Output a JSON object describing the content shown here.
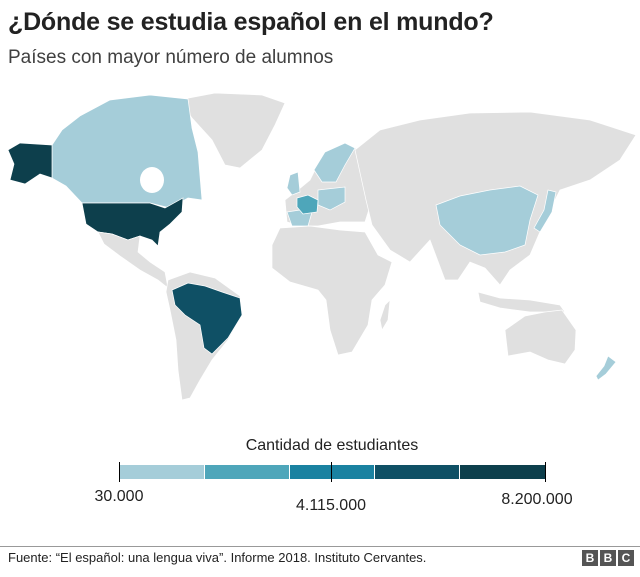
{
  "header": {
    "title": "¿Dónde se estudia español en el mundo?",
    "subtitle": "Países con mayor número de alumnos"
  },
  "legend": {
    "title": "Cantidad de estudiantes",
    "min_label": "30.000",
    "mid_label": "4.115.000",
    "max_label": "8.200.000",
    "bins": [
      "#a5cdd9",
      "#4ea6ba",
      "#1a82a1",
      "#0f5065",
      "#0d3f4c"
    ]
  },
  "map": {
    "no_data_color": "#e0e0e0",
    "highlighted": [
      {
        "country": "Estados Unidos",
        "bin": 4
      },
      {
        "country": "Brasil",
        "bin": 3
      },
      {
        "country": "Francia",
        "bin": 1
      },
      {
        "country": "Canadá",
        "bin": 0
      },
      {
        "country": "China",
        "bin": 0
      },
      {
        "country": "Europa (varios)",
        "bin": 0
      },
      {
        "country": "Japón",
        "bin": 0
      },
      {
        "country": "Nueva Zelanda",
        "bin": 0
      }
    ]
  },
  "footer": {
    "source": "Fuente: “El español: una lengua viva”. Informe 2018. Instituto Cervantes.",
    "logo": "BBC"
  }
}
